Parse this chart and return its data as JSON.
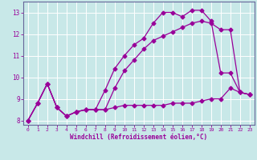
{
  "xlabel": "Windchill (Refroidissement éolien,°C)",
  "bg_color": "#c8e8e8",
  "grid_color": "#aacccc",
  "line_color": "#990099",
  "spine_color": "#666699",
  "xlim": [
    -0.5,
    23.5
  ],
  "ylim": [
    7.8,
    13.5
  ],
  "xticks": [
    0,
    1,
    2,
    3,
    4,
    5,
    6,
    7,
    8,
    9,
    10,
    11,
    12,
    13,
    14,
    15,
    16,
    17,
    18,
    19,
    20,
    21,
    22,
    23
  ],
  "yticks": [
    8,
    9,
    10,
    11,
    12,
    13
  ],
  "series1_x": [
    0,
    1,
    2,
    3,
    4,
    5,
    6,
    7,
    8,
    9,
    10,
    11,
    12,
    13,
    14,
    15,
    16,
    17,
    18,
    19,
    20,
    21,
    22,
    23
  ],
  "series1_y": [
    8.0,
    8.8,
    9.7,
    8.6,
    8.2,
    8.4,
    8.5,
    8.5,
    8.5,
    8.6,
    8.7,
    8.7,
    8.7,
    8.7,
    8.7,
    8.8,
    8.8,
    8.8,
    8.9,
    9.0,
    9.0,
    9.5,
    9.3,
    9.2
  ],
  "series2_x": [
    0,
    1,
    2,
    3,
    4,
    5,
    6,
    7,
    8,
    9,
    10,
    11,
    12,
    13,
    14,
    15,
    16,
    17,
    18,
    19,
    20,
    21,
    22,
    23
  ],
  "series2_y": [
    8.0,
    8.8,
    9.7,
    8.6,
    8.2,
    8.4,
    8.5,
    8.5,
    9.4,
    10.4,
    11.0,
    11.5,
    11.8,
    12.5,
    13.0,
    13.0,
    12.8,
    13.1,
    13.1,
    12.6,
    10.2,
    10.2,
    9.3,
    9.2
  ],
  "series3_x": [
    0,
    1,
    2,
    3,
    4,
    5,
    6,
    7,
    8,
    9,
    10,
    11,
    12,
    13,
    14,
    15,
    16,
    17,
    18,
    19,
    20,
    21,
    22,
    23
  ],
  "series3_y": [
    8.0,
    8.8,
    9.7,
    8.6,
    8.2,
    8.4,
    8.5,
    8.5,
    8.5,
    9.5,
    10.3,
    10.8,
    11.3,
    11.7,
    11.9,
    12.1,
    12.3,
    12.5,
    12.6,
    12.5,
    12.2,
    12.2,
    9.3,
    9.2
  ]
}
